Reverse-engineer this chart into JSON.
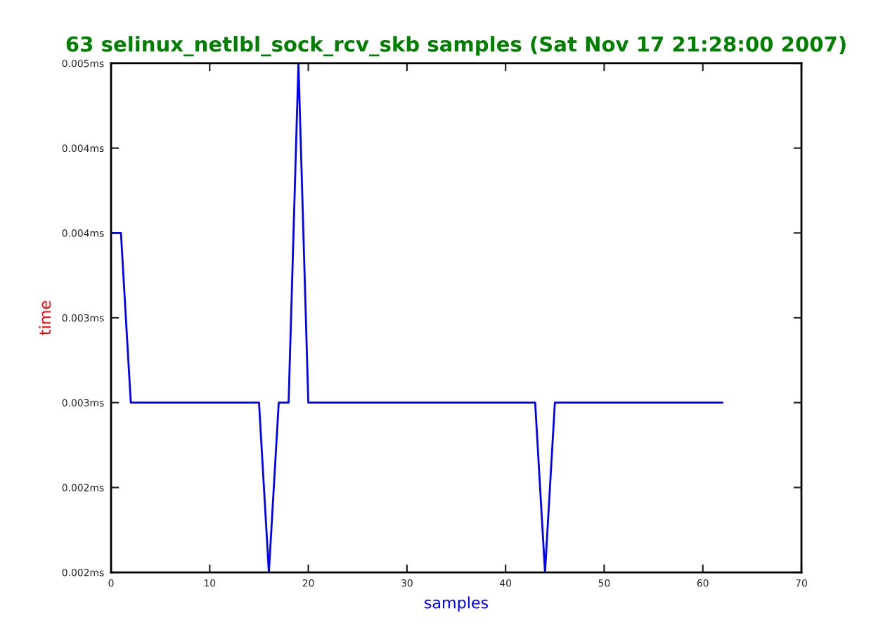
{
  "chart_data": {
    "type": "line",
    "title": "63 selinux_netlbl_sock_rcv_skb samples (Sat Nov 17 21:28:00 2007)",
    "xlabel": "samples",
    "ylabel": "time",
    "x": [
      0,
      1,
      2,
      3,
      4,
      5,
      6,
      7,
      8,
      9,
      10,
      11,
      12,
      13,
      14,
      15,
      16,
      17,
      18,
      19,
      20,
      21,
      22,
      23,
      24,
      25,
      26,
      27,
      28,
      29,
      30,
      31,
      32,
      33,
      34,
      35,
      36,
      37,
      38,
      39,
      40,
      41,
      42,
      43,
      44,
      45,
      46,
      47,
      48,
      49,
      50,
      51,
      52,
      53,
      54,
      55,
      56,
      57,
      58,
      59,
      60,
      61,
      62
    ],
    "series": [
      {
        "color": "#0000ff",
        "values": [
          0.004,
          0.004,
          0.003,
          0.003,
          0.003,
          0.003,
          0.003,
          0.003,
          0.003,
          0.003,
          0.003,
          0.003,
          0.003,
          0.003,
          0.003,
          0.003,
          0.002,
          0.003,
          0.003,
          0.005,
          0.003,
          0.003,
          0.003,
          0.003,
          0.003,
          0.003,
          0.003,
          0.003,
          0.003,
          0.003,
          0.003,
          0.003,
          0.003,
          0.003,
          0.003,
          0.003,
          0.003,
          0.003,
          0.003,
          0.003,
          0.003,
          0.003,
          0.003,
          0.003,
          0.002,
          0.003,
          0.003,
          0.003,
          0.003,
          0.003,
          0.003,
          0.003,
          0.003,
          0.003,
          0.003,
          0.003,
          0.003,
          0.003,
          0.003,
          0.003,
          0.003,
          0.003,
          0.003
        ]
      }
    ],
    "xlim": [
      0,
      70
    ],
    "xticks": [
      0,
      10,
      20,
      30,
      40,
      50,
      60,
      70
    ],
    "ylim": [
      0.002,
      0.005
    ],
    "yticks": [
      {
        "value": 0.002,
        "label": "0.002ms"
      },
      {
        "value": 0.0025,
        "label": "0.002ms"
      },
      {
        "value": 0.003,
        "label": "0.003ms"
      },
      {
        "value": 0.0035,
        "label": "0.003ms"
      },
      {
        "value": 0.004,
        "label": "0.004ms"
      },
      {
        "value": 0.0045,
        "label": "0.004ms"
      },
      {
        "value": 0.005,
        "label": "0.005ms"
      }
    ],
    "grid": false,
    "legend": false,
    "marker": "none",
    "line_style": "solid"
  }
}
